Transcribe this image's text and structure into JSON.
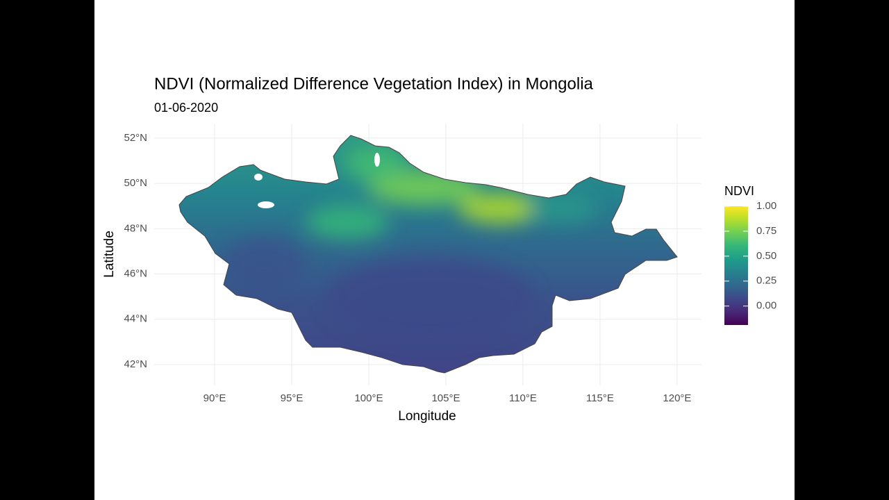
{
  "chart_data": {
    "type": "map",
    "title": "NDVI (Normalized Difference Vegetation Index) in Mongolia",
    "subtitle": "01-06-2020",
    "x_label": "Longitude",
    "y_label": "Latitude",
    "xlim": [
      86.08,
      121.58
    ],
    "ylim": [
      41.08,
      52.64
    ],
    "xticks": [
      {
        "value": 90,
        "label": "90°E"
      },
      {
        "value": 95,
        "label": "95°E"
      },
      {
        "value": 100,
        "label": "100°E"
      },
      {
        "value": 105,
        "label": "105°E"
      },
      {
        "value": 110,
        "label": "110°E"
      },
      {
        "value": 115,
        "label": "115°E"
      },
      {
        "value": 120,
        "label": "120°E"
      }
    ],
    "yticks": [
      {
        "value": 42,
        "label": "42°N"
      },
      {
        "value": 44,
        "label": "44°N"
      },
      {
        "value": 46,
        "label": "46°N"
      },
      {
        "value": 48,
        "label": "48°N"
      },
      {
        "value": 50,
        "label": "50°N"
      },
      {
        "value": 52,
        "label": "52°N"
      }
    ],
    "grid": true,
    "legend": {
      "title": "NDVI",
      "position": "right",
      "colormap": "viridis",
      "limits": [
        -0.19,
        1.0
      ],
      "ticks": [
        {
          "value": 1,
          "label": "1.00"
        },
        {
          "value": 0.75,
          "label": "0.75"
        },
        {
          "value": 0.5,
          "label": "0.50"
        },
        {
          "value": 0.25,
          "label": "0.25"
        },
        {
          "value": 0,
          "label": "0.00"
        }
      ]
    }
  }
}
